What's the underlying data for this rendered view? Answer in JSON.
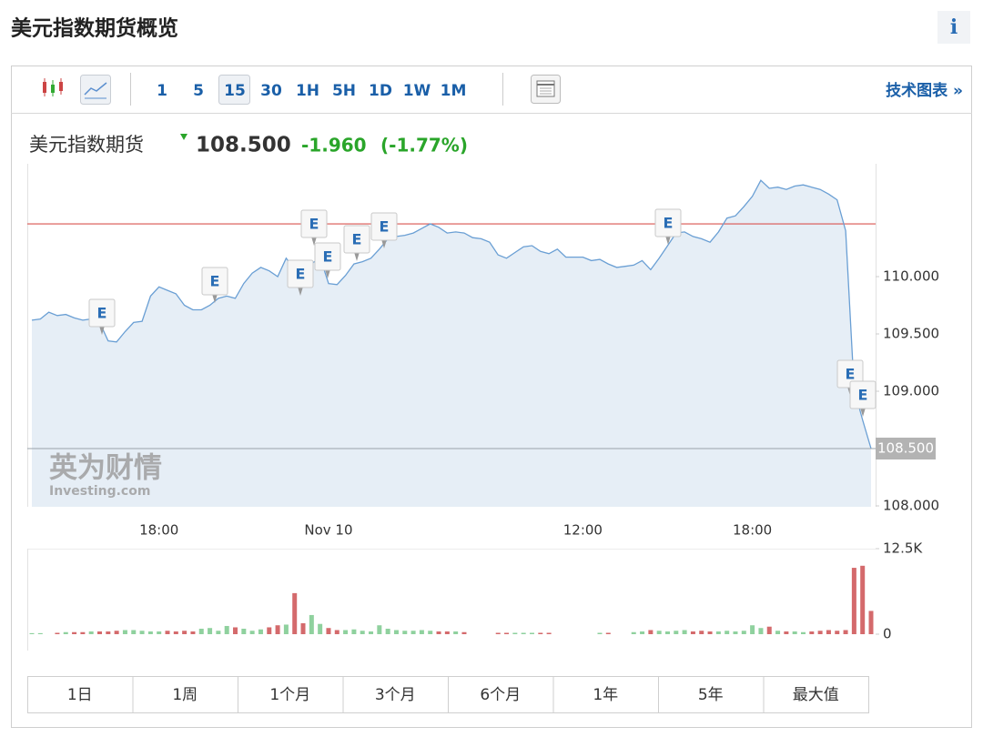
{
  "header": {
    "title": "美元指数期货概览",
    "info": "i"
  },
  "toolbar": {
    "intervals": [
      "1",
      "5",
      "15",
      "30",
      "1H",
      "5H",
      "1D",
      "1W",
      "1M"
    ],
    "selected_interval": "15",
    "link": "技术图表 »"
  },
  "quote": {
    "name": "美元指数期货",
    "price": "108.500",
    "change": "-1.960",
    "change_pct": "(-1.77%)"
  },
  "watermark": {
    "brand": "英为财情",
    "site": "Investing.com"
  },
  "chart_data": [
    {
      "type": "line",
      "categories": [
        null,
        null,
        null,
        null,
        null,
        null,
        null,
        null,
        null,
        null,
        null,
        null,
        null,
        null,
        null,
        "18:00",
        null,
        null,
        null,
        null,
        null,
        null,
        null,
        null,
        null,
        null,
        null,
        null,
        null,
        null,
        null,
        null,
        null,
        null,
        null,
        "Nov 10",
        null,
        null,
        null,
        null,
        null,
        null,
        null,
        null,
        null,
        null,
        null,
        null,
        null,
        null,
        null,
        null,
        null,
        null,
        null,
        null,
        null,
        null,
        null,
        null,
        null,
        null,
        null,
        null,
        null,
        "12:00",
        null,
        null,
        null,
        null,
        null,
        null,
        null,
        null,
        null,
        null,
        null,
        null,
        null,
        null,
        null,
        null,
        null,
        null,
        null,
        "18:00",
        null,
        null,
        null,
        null,
        null,
        null,
        null,
        null,
        null,
        null,
        null,
        null,
        null,
        null
      ],
      "values": [
        109.62,
        109.63,
        109.69,
        109.66,
        109.67,
        109.64,
        109.62,
        109.63,
        109.6,
        109.44,
        109.43,
        109.52,
        109.6,
        109.61,
        109.83,
        109.91,
        109.88,
        109.85,
        109.75,
        109.71,
        109.71,
        109.75,
        109.81,
        109.83,
        109.81,
        109.94,
        110.03,
        110.08,
        110.05,
        110.0,
        110.16,
        110.06,
        110.02,
        110.11,
        110.17,
        109.94,
        109.93,
        110.01,
        110.11,
        110.13,
        110.16,
        110.24,
        110.33,
        110.35,
        110.36,
        110.38,
        110.42,
        110.46,
        110.43,
        110.38,
        110.39,
        110.38,
        110.34,
        110.33,
        110.3,
        110.19,
        110.16,
        110.21,
        110.26,
        110.27,
        110.22,
        110.2,
        110.24,
        110.17,
        110.17,
        110.17,
        110.14,
        110.15,
        110.11,
        110.08,
        110.09,
        110.1,
        110.14,
        110.06,
        110.16,
        110.27,
        110.38,
        110.39,
        110.35,
        110.33,
        110.3,
        110.39,
        110.51,
        110.53,
        110.61,
        110.7,
        110.84,
        110.77,
        110.78,
        110.76,
        110.79,
        110.8,
        110.78,
        110.76,
        110.72,
        110.67,
        110.4,
        109.02,
        108.75,
        108.5
      ],
      "color": "#6a9fd4",
      "fill": "#e6eef6",
      "ylim": [
        108,
        111
      ],
      "yticks": [
        {
          "value": 108,
          "label": "108.000"
        },
        {
          "value": 109,
          "label": "109.000"
        },
        {
          "value": 109.5,
          "label": "109.500"
        },
        {
          "value": 110,
          "label": "110.000"
        }
      ],
      "prev_close": 110.46,
      "prev_close_color": "#d9534f",
      "annotations": [
        "E",
        "E",
        "E",
        "E",
        "E",
        "E",
        "E",
        "E",
        "E",
        "E"
      ]
    },
    {
      "type": "bar",
      "values": [
        150,
        150,
        0,
        200,
        300,
        300,
        300,
        400,
        400,
        400,
        500,
        600,
        600,
        500,
        400,
        400,
        500,
        400,
        500,
        400,
        800,
        900,
        500,
        1200,
        1000,
        800,
        500,
        700,
        1000,
        1300,
        1400,
        6000,
        1600,
        2800,
        1500,
        900,
        600,
        600,
        700,
        500,
        400,
        1300,
        800,
        600,
        500,
        500,
        600,
        500,
        400,
        400,
        400,
        300,
        0,
        0,
        0,
        200,
        200,
        200,
        200,
        200,
        200,
        200,
        0,
        0,
        0,
        0,
        0,
        200,
        200,
        0,
        0,
        300,
        400,
        600,
        500,
        400,
        500,
        600,
        400,
        500,
        400,
        400,
        500,
        400,
        500,
        1300,
        900,
        1100,
        500,
        400,
        400,
        300,
        400,
        500,
        600,
        500,
        600,
        9700,
        10000,
        3400
      ],
      "up_color": "#8fd19e",
      "down_color": "#d46a6c",
      "ylim": [
        0,
        12500
      ],
      "yticks": [
        0,
        {
          "value": 12500,
          "label": "12.5K"
        }
      ]
    }
  ],
  "ranges": [
    "1日",
    "1周",
    "1个月",
    "3个月",
    "6个月",
    "1年",
    "5年",
    "最大值"
  ]
}
